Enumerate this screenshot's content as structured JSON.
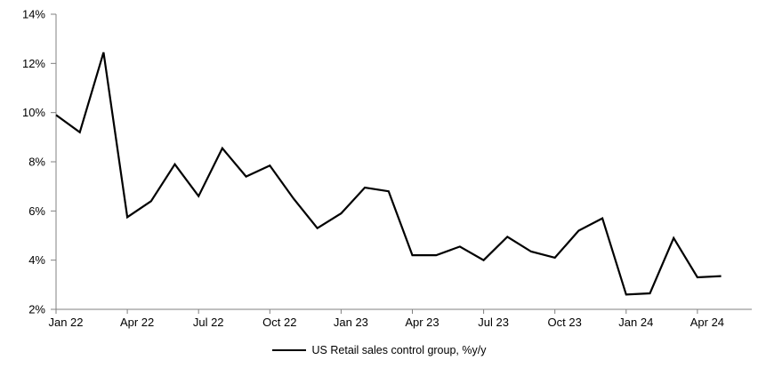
{
  "chart_data": {
    "type": "line",
    "title": "",
    "xlabel": "",
    "ylabel": "",
    "x": [
      "Jan 22",
      "Feb 22",
      "Mar 22",
      "Apr 22",
      "May 22",
      "Jun 22",
      "Jul 22",
      "Aug 22",
      "Sep 22",
      "Oct 22",
      "Nov 22",
      "Dec 22",
      "Jan 23",
      "Feb 23",
      "Mar 23",
      "Apr 23",
      "May 23",
      "Jun 23",
      "Jul 23",
      "Aug 23",
      "Sep 23",
      "Oct 23",
      "Nov 23",
      "Dec 23",
      "Jan 24",
      "Feb 24",
      "Mar 24",
      "Apr 24",
      "May 24"
    ],
    "series": [
      {
        "name": "US Retail sales control group, %y/y",
        "values": [
          9.9,
          9.2,
          12.45,
          5.75,
          6.4,
          7.9,
          6.6,
          8.55,
          7.4,
          7.85,
          6.5,
          5.3,
          5.9,
          6.95,
          6.8,
          4.2,
          4.2,
          4.55,
          4.0,
          4.95,
          4.35,
          4.1,
          5.2,
          5.7,
          2.6,
          2.65,
          4.9,
          3.3,
          3.35
        ]
      }
    ],
    "ylim": [
      2,
      14
    ],
    "ytick_values": [
      2,
      4,
      6,
      8,
      10,
      12,
      14
    ],
    "ytick_suffix": "%",
    "xtick_labels": [
      "Jan 22",
      "Apr 22",
      "Jul 22",
      "Oct 22",
      "Jan 23",
      "Apr 23",
      "Jul 23",
      "Oct 23",
      "Jan 24",
      "Apr 24"
    ],
    "xtick_month_indices": [
      0,
      3,
      6,
      9,
      12,
      15,
      18,
      21,
      24,
      27
    ],
    "grid": false,
    "legend_position": "bottom",
    "legend": {
      "label": "US Retail sales control group, %y/y"
    },
    "colors": {
      "line": "#000000",
      "axis": "#808080",
      "text": "#000000",
      "background": "#ffffff"
    }
  }
}
